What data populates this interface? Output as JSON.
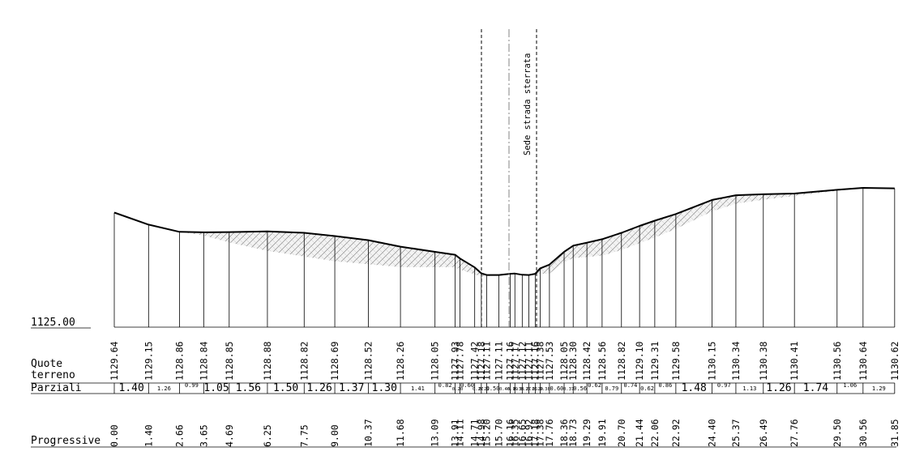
{
  "section": {
    "datum_label": "1125.00",
    "datum_value": 1125.0,
    "road_label": "Sede strada sterrata"
  },
  "rows": {
    "quote_label_1": "Quote",
    "quote_label_2": "terreno",
    "parziali_label": "Parziali",
    "progressive_label": "Progressive"
  },
  "stations": [
    {
      "prog": "0.00",
      "quota": "1129.64"
    },
    {
      "prog": "1.40",
      "quota": "1129.15"
    },
    {
      "prog": "2.66",
      "quota": "1128.86"
    },
    {
      "prog": "3.65",
      "quota": "1128.84"
    },
    {
      "prog": "4.69",
      "quota": "1128.85"
    },
    {
      "prog": "6.25",
      "quota": "1128.88"
    },
    {
      "prog": "7.75",
      "quota": "1128.82"
    },
    {
      "prog": "9.00",
      "quota": "1128.69"
    },
    {
      "prog": "10.37",
      "quota": "1128.52"
    },
    {
      "prog": "11.68",
      "quota": "1128.26"
    },
    {
      "prog": "13.09",
      "quota": "1128.05"
    },
    {
      "prog": "13.91",
      "quota": "1127.93"
    },
    {
      "prog": "14.11",
      "quota": "1127.78"
    },
    {
      "prog": "14.71",
      "quota": "1127.42"
    },
    {
      "prog": "14.98",
      "quota": "1127.18"
    },
    {
      "prog": "15.20",
      "quota": "1127.11"
    },
    {
      "prog": "15.70",
      "quota": "1127.11"
    },
    {
      "prog": "16.16",
      "quota": "1127.16"
    },
    {
      "prog": "16.35",
      "quota": "1127.17"
    },
    {
      "prog": "16.65",
      "quota": "1127.12"
    },
    {
      "prog": "16.92",
      "quota": "1127.11"
    },
    {
      "prog": "17.18",
      "quota": "1127.16"
    },
    {
      "prog": "17.38",
      "quota": "1127.38"
    },
    {
      "prog": "17.76",
      "quota": "1127.53"
    },
    {
      "prog": "18.36",
      "quota": "1128.05"
    },
    {
      "prog": "18.73",
      "quota": "1128.30"
    },
    {
      "prog": "19.29",
      "quota": "1128.42"
    },
    {
      "prog": "19.91",
      "quota": "1128.56"
    },
    {
      "prog": "20.70",
      "quota": "1128.82"
    },
    {
      "prog": "21.44",
      "quota": "1129.10"
    },
    {
      "prog": "22.06",
      "quota": "1129.31"
    },
    {
      "prog": "22.92",
      "quota": "1129.58"
    },
    {
      "prog": "24.40",
      "quota": "1130.15"
    },
    {
      "prog": "25.37",
      "quota": "1130.34"
    },
    {
      "prog": "26.49",
      "quota": "1130.38"
    },
    {
      "prog": "27.76",
      "quota": "1130.41"
    },
    {
      "prog": "29.50",
      "quota": "1130.56"
    },
    {
      "prog": "30.56",
      "quota": "1130.64"
    },
    {
      "prog": "31.85",
      "quota": "1130.62"
    }
  ],
  "parziali": [
    {
      "v": "1.40",
      "big": true
    },
    {
      "v": "1.26",
      "big": false
    },
    {
      "v": "0.99",
      "big": false
    },
    {
      "v": "1.05",
      "big": true
    },
    {
      "v": "1.56",
      "big": true
    },
    {
      "v": "1.50",
      "big": true
    },
    {
      "v": "1.26",
      "big": true
    },
    {
      "v": "1.37",
      "big": true
    },
    {
      "v": "1.30",
      "big": true
    },
    {
      "v": "1.41",
      "big": false
    },
    {
      "v": "0.82",
      "big": false
    },
    {
      "v": "0.20",
      "big": false
    },
    {
      "v": "0.60",
      "big": false
    },
    {
      "v": "0.27",
      "big": false
    },
    {
      "v": "0.22",
      "big": false
    },
    {
      "v": "0.50",
      "big": false
    },
    {
      "v": "0.46",
      "big": false
    },
    {
      "v": "0.19",
      "big": false
    },
    {
      "v": "0.30",
      "big": false
    },
    {
      "v": "0.27",
      "big": false
    },
    {
      "v": "0.26",
      "big": false
    },
    {
      "v": "0.20",
      "big": false
    },
    {
      "v": "0.38",
      "big": false
    },
    {
      "v": "0.60",
      "big": false
    },
    {
      "v": "0.37",
      "big": false
    },
    {
      "v": "0.56",
      "big": false
    },
    {
      "v": "0.62",
      "big": false
    },
    {
      "v": "0.79",
      "big": false
    },
    {
      "v": "0.74",
      "big": false
    },
    {
      "v": "0.62",
      "big": false
    },
    {
      "v": "0.86",
      "big": false
    },
    {
      "v": "1.48",
      "big": true
    },
    {
      "v": "0.97",
      "big": false
    },
    {
      "v": "1.13",
      "big": false
    },
    {
      "v": "1.26",
      "big": true
    },
    {
      "v": "1.74",
      "big": true
    },
    {
      "v": "1.06",
      "big": false
    },
    {
      "v": "1.29",
      "big": false
    }
  ],
  "shading_depth": [
    0,
    0,
    0,
    0.13,
    0.42,
    0.79,
    0.96,
    1.02,
    0.97,
    0.83,
    0.62,
    0.5,
    0.45,
    0.28,
    0.13,
    0.05,
    0.0,
    0.0,
    0.0,
    0.0,
    0.0,
    0.05,
    0.22,
    0.36,
    0.42,
    0.5,
    0.58,
    0.66,
    0.7,
    0.7,
    0.68,
    0.6,
    0.46,
    0.34,
    0.22,
    0.1,
    0.04,
    0.02,
    0
  ],
  "colors": {
    "line": "#000000",
    "hatch": "#8f8f8f",
    "hatch_bg": "#f3f3f3"
  }
}
